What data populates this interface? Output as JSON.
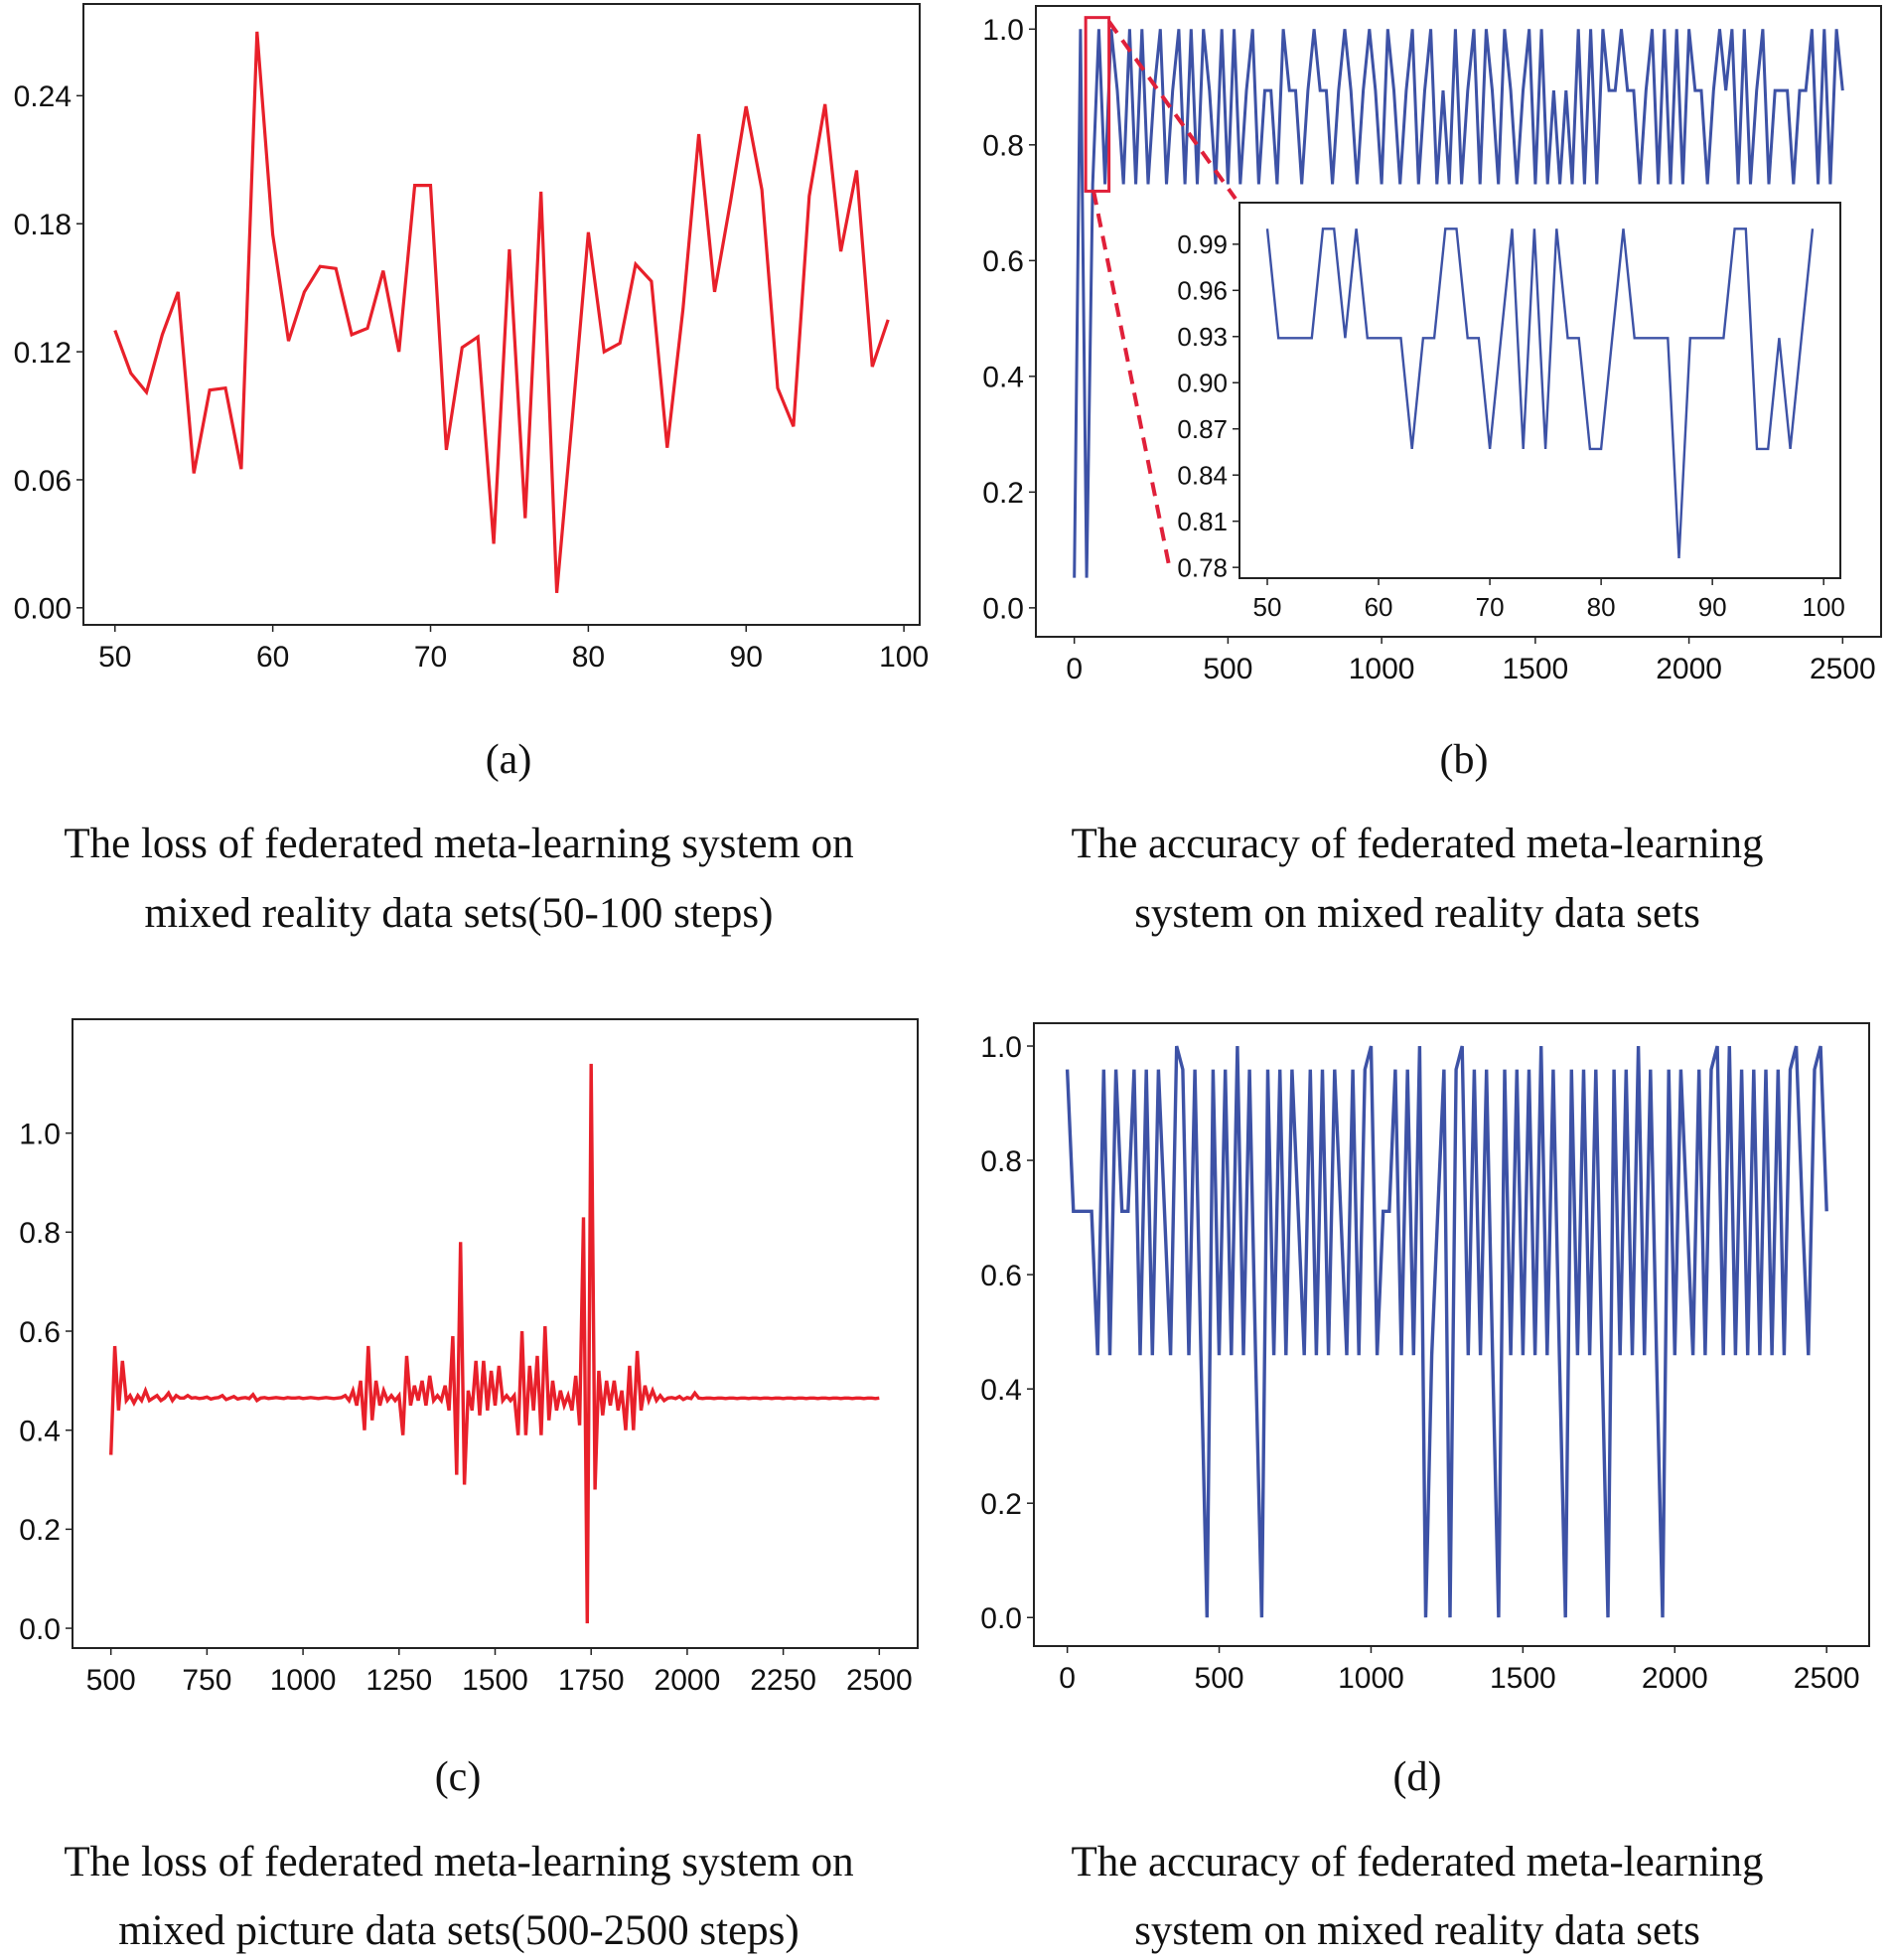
{
  "colors": {
    "loss": "#e8202a",
    "accuracy": "#3d52a6",
    "zoom_marker": "#e0203a"
  },
  "captions": {
    "a": {
      "tag": "(a)",
      "line1": "The loss of federated meta-learning system on",
      "line2": "mixed reality data sets(50-100 steps)"
    },
    "b": {
      "tag": "(b)",
      "line1": "The accuracy of federated meta-learning",
      "line2": "system on mixed reality data sets"
    },
    "c": {
      "tag": "(c)",
      "line1": "The loss of federated meta-learning system on",
      "line2": "mixed picture data sets(500-2500 steps)"
    },
    "d": {
      "tag": "(d)",
      "line1": "The accuracy of federated meta-learning",
      "line2": "system on mixed reality data sets"
    }
  },
  "chart_data": [
    {
      "id": "a",
      "type": "line",
      "title": "",
      "xlabel": "",
      "ylabel": "",
      "xlim": [
        48,
        101
      ],
      "ylim": [
        -0.008,
        0.283
      ],
      "grid": false,
      "xticks": [
        50,
        60,
        70,
        80,
        90,
        100
      ],
      "xtick_labels": [
        "50",
        "60",
        "70",
        "80",
        "90",
        "100"
      ],
      "yticks": [
        0,
        0.06,
        0.12,
        0.18,
        0.24
      ],
      "ytick_labels": [
        "0.00",
        "0.06",
        "0.12",
        "0.18",
        "0.24"
      ],
      "x_start": 50,
      "x_step": 1,
      "values": [
        0.13,
        0.11,
        0.101,
        0.128,
        0.148,
        0.063,
        0.102,
        0.103,
        0.065,
        0.27,
        0.175,
        0.125,
        0.148,
        0.16,
        0.159,
        0.128,
        0.131,
        0.158,
        0.12,
        0.198,
        0.198,
        0.074,
        0.122,
        0.127,
        0.03,
        0.168,
        0.042,
        0.195,
        0.007,
        0.09,
        0.176,
        0.12,
        0.124,
        0.161,
        0.153,
        0.075,
        0.14,
        0.222,
        0.148,
        0.19,
        0.235,
        0.196,
        0.103,
        0.085,
        0.193,
        0.236,
        0.167,
        0.205,
        0.113,
        0.135
      ]
    },
    {
      "id": "b",
      "type": "line",
      "title": "",
      "xlabel": "",
      "ylabel": "",
      "xlim": [
        -125,
        2625
      ],
      "ylim": [
        -0.05,
        1.04
      ],
      "grid": false,
      "xticks": [
        0,
        500,
        1000,
        1500,
        2000,
        2500
      ],
      "xtick_labels": [
        "0",
        "500",
        "1000",
        "1500",
        "2000",
        "2500"
      ],
      "yticks": [
        0,
        0.2,
        0.4,
        0.6,
        0.8,
        1.0
      ],
      "ytick_labels": [
        "0.0",
        "0.2",
        "0.4",
        "0.6",
        "0.8",
        "1.0"
      ],
      "x_start": 0,
      "x_step": 20,
      "values": [
        0.052,
        1.0,
        0.052,
        0.732,
        1.0,
        0.732,
        1.0,
        0.894,
        0.732,
        1.0,
        0.732,
        1.0,
        0.732,
        0.894,
        1.0,
        0.732,
        0.894,
        1.0,
        0.732,
        1.0,
        0.732,
        1.0,
        0.894,
        0.732,
        1.0,
        0.732,
        1.0,
        0.732,
        0.894,
        1.0,
        0.732,
        0.894,
        0.894,
        0.732,
        1.0,
        0.894,
        0.894,
        0.732,
        0.894,
        1.0,
        0.894,
        0.894,
        0.732,
        0.894,
        1.0,
        0.894,
        0.732,
        0.894,
        1.0,
        0.894,
        0.732,
        1.0,
        0.894,
        0.732,
        0.894,
        1.0,
        0.732,
        0.894,
        1.0,
        0.732,
        0.894,
        0.732,
        1.0,
        0.732,
        0.894,
        1.0,
        0.732,
        1.0,
        0.894,
        0.732,
        1.0,
        0.894,
        0.732,
        0.894,
        1.0,
        0.732,
        1.0,
        0.732,
        0.894,
        0.732,
        0.894,
        0.732,
        1.0,
        0.732,
        1.0,
        0.732,
        1.0,
        0.894,
        0.894,
        1.0,
        0.894,
        0.894,
        0.732,
        0.894,
        1.0,
        0.732,
        1.0,
        0.732,
        1.0,
        0.732,
        1.0,
        0.894,
        0.894,
        0.732,
        0.894,
        1.0,
        0.894,
        1.0,
        0.732,
        1.0,
        0.732,
        0.894,
        1.0,
        0.732,
        0.894,
        0.894,
        0.894,
        0.732,
        0.894,
        0.894,
        1.0,
        0.732,
        1.0,
        0.732,
        1.0,
        0.894
      ],
      "inset": {
        "xlim": [
          47.5,
          101.5
        ],
        "ylim": [
          0.773,
          1.017
        ],
        "xticks": [
          50,
          60,
          70,
          80,
          90,
          100
        ],
        "xtick_labels": [
          "50",
          "60",
          "70",
          "80",
          "90",
          "100"
        ],
        "yticks": [
          0.78,
          0.81,
          0.84,
          0.87,
          0.9,
          0.93,
          0.96,
          0.99
        ],
        "ytick_labels": [
          "0.78",
          "0.81",
          "0.84",
          "0.87",
          "0.90",
          "0.93",
          "0.96",
          "0.99"
        ],
        "x_start": 50,
        "x_step": 1,
        "values": [
          1.0,
          0.929,
          0.929,
          0.929,
          0.929,
          1.0,
          1.0,
          0.929,
          1.0,
          0.929,
          0.929,
          0.929,
          0.929,
          0.857,
          0.929,
          0.929,
          1.0,
          1.0,
          0.929,
          0.929,
          0.857,
          0.929,
          1.0,
          0.857,
          1.0,
          0.857,
          1.0,
          0.929,
          0.929,
          0.857,
          0.857,
          0.929,
          1.0,
          0.929,
          0.929,
          0.929,
          0.929,
          0.786,
          0.929,
          0.929,
          0.929,
          0.929,
          1.0,
          1.0,
          0.857,
          0.857,
          0.929,
          0.857,
          0.929,
          1.0
        ]
      },
      "zoom_region": {
        "x": [
          50,
          100
        ],
        "y": [
          0.72,
          1.02
        ]
      }
    },
    {
      "id": "c",
      "type": "line",
      "title": "",
      "xlabel": "",
      "ylabel": "",
      "xlim": [
        400,
        2600
      ],
      "ylim": [
        -0.04,
        1.23
      ],
      "grid": false,
      "xticks": [
        500,
        750,
        1000,
        1250,
        1500,
        1750,
        2000,
        2250,
        2500
      ],
      "xtick_labels": [
        "500",
        "750",
        "1000",
        "1250",
        "1500",
        "1750",
        "2000",
        "2250",
        "2500"
      ],
      "yticks": [
        0,
        0.2,
        0.4,
        0.6,
        0.8,
        1.0
      ],
      "ytick_labels": [
        "0.0",
        "0.2",
        "0.4",
        "0.6",
        "0.8",
        "1.0"
      ],
      "x_start": 500,
      "x_step": 10,
      "values": [
        0.35,
        0.57,
        0.44,
        0.54,
        0.46,
        0.47,
        0.455,
        0.47,
        0.46,
        0.48,
        0.46,
        0.465,
        0.47,
        0.46,
        0.465,
        0.475,
        0.46,
        0.47,
        0.465,
        0.465,
        0.47,
        0.465,
        0.466,
        0.464,
        0.465,
        0.467,
        0.463,
        0.465,
        0.466,
        0.47,
        0.462,
        0.465,
        0.468,
        0.463,
        0.465,
        0.466,
        0.464,
        0.472,
        0.46,
        0.465,
        0.466,
        0.464,
        0.465,
        0.466,
        0.465,
        0.464,
        0.466,
        0.465,
        0.465,
        0.466,
        0.464,
        0.465,
        0.466,
        0.465,
        0.464,
        0.465,
        0.466,
        0.465,
        0.464,
        0.465,
        0.466,
        0.47,
        0.46,
        0.48,
        0.45,
        0.5,
        0.4,
        0.57,
        0.42,
        0.5,
        0.45,
        0.48,
        0.46,
        0.47,
        0.46,
        0.47,
        0.39,
        0.55,
        0.45,
        0.49,
        0.46,
        0.5,
        0.45,
        0.51,
        0.46,
        0.47,
        0.46,
        0.49,
        0.44,
        0.59,
        0.31,
        0.78,
        0.29,
        0.48,
        0.44,
        0.54,
        0.43,
        0.54,
        0.44,
        0.52,
        0.45,
        0.53,
        0.46,
        0.47,
        0.46,
        0.47,
        0.39,
        0.6,
        0.39,
        0.53,
        0.44,
        0.55,
        0.39,
        0.61,
        0.42,
        0.5,
        0.44,
        0.48,
        0.45,
        0.47,
        0.44,
        0.51,
        0.41,
        0.83,
        0.01,
        1.14,
        0.28,
        0.52,
        0.43,
        0.5,
        0.45,
        0.5,
        0.44,
        0.48,
        0.4,
        0.53,
        0.4,
        0.56,
        0.44,
        0.49,
        0.46,
        0.48,
        0.46,
        0.47,
        0.46,
        0.465,
        0.466,
        0.464,
        0.468,
        0.462,
        0.466,
        0.464,
        0.475,
        0.465,
        0.464,
        0.465,
        0.465,
        0.464,
        0.465,
        0.465,
        0.464,
        0.465,
        0.465,
        0.464,
        0.465,
        0.465,
        0.464,
        0.465,
        0.465,
        0.464,
        0.465,
        0.465,
        0.464,
        0.465,
        0.465,
        0.464,
        0.465,
        0.465,
        0.464,
        0.465,
        0.465,
        0.464,
        0.465,
        0.465,
        0.464,
        0.465,
        0.465,
        0.464,
        0.465,
        0.465,
        0.464,
        0.465,
        0.465,
        0.464,
        0.465,
        0.465,
        0.464,
        0.465,
        0.465,
        0.464,
        0.465
      ]
    },
    {
      "id": "d",
      "type": "line",
      "title": "",
      "xlabel": "",
      "ylabel": "",
      "xlim": [
        -110,
        2640
      ],
      "ylim": [
        -0.05,
        1.04
      ],
      "grid": false,
      "xticks": [
        0,
        500,
        1000,
        1500,
        2000,
        2500
      ],
      "xtick_labels": [
        "0",
        "500",
        "1000",
        "1500",
        "2000",
        "2500"
      ],
      "yticks": [
        0,
        0.2,
        0.4,
        0.6,
        0.8,
        1.0
      ],
      "ytick_labels": [
        "0.0",
        "0.2",
        "0.4",
        "0.6",
        "0.8",
        "1.0"
      ],
      "x_start": 0,
      "x_step": 20,
      "values": [
        0.959,
        0.711,
        0.711,
        0.711,
        0.711,
        0.459,
        0.959,
        0.459,
        0.959,
        0.711,
        0.711,
        0.959,
        0.459,
        0.959,
        0.459,
        0.959,
        0.711,
        0.459,
        1.0,
        0.959,
        0.459,
        0.959,
        0.459,
        0.0,
        0.959,
        0.459,
        0.959,
        0.459,
        1.0,
        0.459,
        0.959,
        0.459,
        0.0,
        0.959,
        0.459,
        0.959,
        0.459,
        0.959,
        0.711,
        0.459,
        0.959,
        0.459,
        0.959,
        0.459,
        0.959,
        0.711,
        0.459,
        0.959,
        0.459,
        0.959,
        1.0,
        0.459,
        0.711,
        0.711,
        0.959,
        0.459,
        0.959,
        0.459,
        1.0,
        0.0,
        0.459,
        0.711,
        0.959,
        0.0,
        0.959,
        1.0,
        0.459,
        0.959,
        0.459,
        0.959,
        0.459,
        0.0,
        0.959,
        0.459,
        0.959,
        0.459,
        0.959,
        0.459,
        1.0,
        0.459,
        0.959,
        0.459,
        0.0,
        0.959,
        0.459,
        0.959,
        0.459,
        0.959,
        0.459,
        0.0,
        0.959,
        0.459,
        0.959,
        0.459,
        1.0,
        0.459,
        0.959,
        0.459,
        0.0,
        0.959,
        0.459,
        0.959,
        0.711,
        0.459,
        0.959,
        0.459,
        0.959,
        1.0,
        0.459,
        1.0,
        0.459,
        0.959,
        0.459,
        0.959,
        0.459,
        0.959,
        0.459,
        0.959,
        0.459,
        0.959,
        1.0,
        0.711,
        0.459,
        0.959,
        1.0,
        0.711
      ]
    }
  ]
}
